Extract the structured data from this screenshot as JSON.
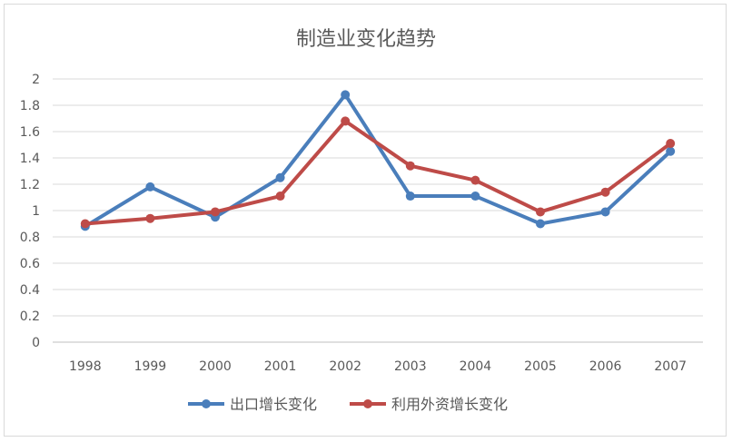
{
  "chart_data": {
    "type": "line",
    "title": "制造业变化趋势",
    "categories": [
      "1998",
      "1999",
      "2000",
      "2001",
      "2002",
      "2003",
      "2004",
      "2005",
      "2006",
      "2007"
    ],
    "series": [
      {
        "name": "出口增长变化",
        "color": "#4a7ebb",
        "values": [
          0.88,
          1.18,
          0.95,
          1.25,
          1.88,
          1.11,
          1.11,
          0.9,
          0.99,
          1.45
        ]
      },
      {
        "name": "利用外资增长变化",
        "color": "#be4b48",
        "values": [
          0.9,
          0.94,
          0.99,
          1.11,
          1.68,
          1.34,
          1.23,
          0.99,
          1.14,
          1.51
        ]
      }
    ],
    "yticks": [
      "0",
      "0.2",
      "0.4",
      "0.6",
      "0.8",
      "1",
      "1.2",
      "1.4",
      "1.6",
      "1.8",
      "2"
    ],
    "ylim": [
      0,
      2
    ],
    "grid": true,
    "legend_position": "bottom"
  }
}
